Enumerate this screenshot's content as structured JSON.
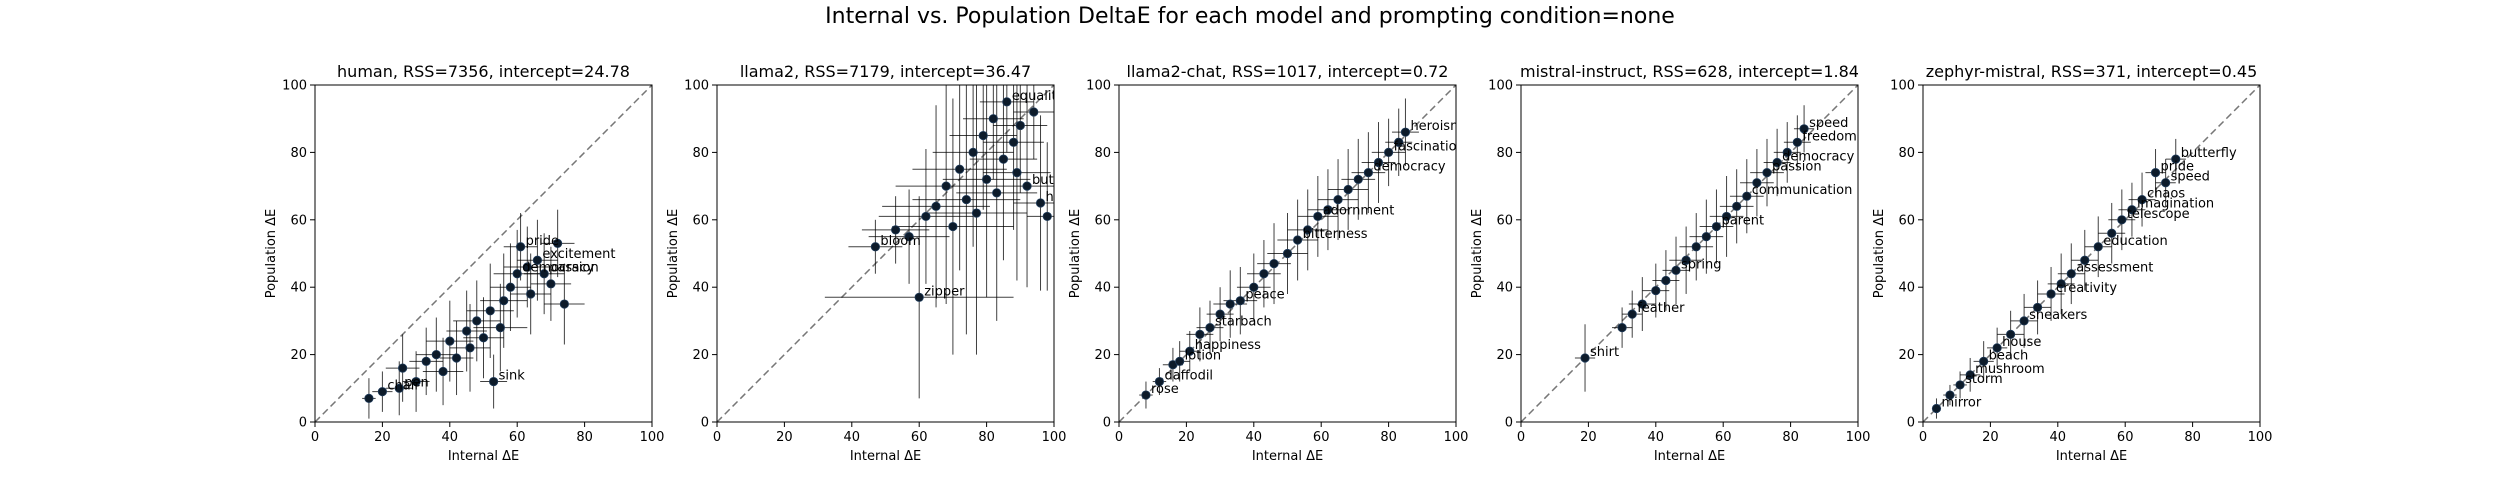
{
  "figure": {
    "title": "Internal vs. Population DeltaE for each model and prompting condition=none"
  },
  "chart_data": [
    {
      "type": "scatter",
      "title": "human, RSS=7356, intercept=24.78",
      "xlabel": "Internal ΔE",
      "ylabel": "Population ΔE",
      "xlim": [
        0,
        100
      ],
      "ylim": [
        0,
        100
      ],
      "xticks": [
        "0",
        "20",
        "40",
        "60",
        "80",
        "100"
      ],
      "yticks": [
        "0",
        "20",
        "40",
        "60",
        "80",
        "100"
      ],
      "diagonal": true,
      "points": [
        {
          "x": 16,
          "y": 7,
          "ex": 2,
          "ey": 6
        },
        {
          "x": 20,
          "y": 9,
          "ex": 3,
          "ey": 6,
          "label": "chair"
        },
        {
          "x": 25,
          "y": 10,
          "ex": 4,
          "ey": 8,
          "label": "pen"
        },
        {
          "x": 26,
          "y": 16,
          "ex": 5,
          "ey": 10
        },
        {
          "x": 30,
          "y": 12,
          "ex": 4,
          "ey": 9
        },
        {
          "x": 33,
          "y": 18,
          "ex": 5,
          "ey": 10
        },
        {
          "x": 36,
          "y": 20,
          "ex": 6,
          "ey": 11
        },
        {
          "x": 38,
          "y": 15,
          "ex": 6,
          "ey": 10
        },
        {
          "x": 40,
          "y": 24,
          "ex": 7,
          "ey": 12
        },
        {
          "x": 42,
          "y": 19,
          "ex": 5,
          "ey": 11
        },
        {
          "x": 45,
          "y": 27,
          "ex": 6,
          "ey": 12
        },
        {
          "x": 46,
          "y": 22,
          "ex": 6,
          "ey": 13
        },
        {
          "x": 48,
          "y": 30,
          "ex": 7,
          "ey": 12
        },
        {
          "x": 50,
          "y": 25,
          "ex": 6,
          "ey": 12
        },
        {
          "x": 52,
          "y": 33,
          "ex": 7,
          "ey": 14
        },
        {
          "x": 53,
          "y": 12,
          "ex": 4,
          "ey": 8,
          "label": "sink"
        },
        {
          "x": 55,
          "y": 28,
          "ex": 8,
          "ey": 13
        },
        {
          "x": 56,
          "y": 36,
          "ex": 7,
          "ey": 14
        },
        {
          "x": 58,
          "y": 40,
          "ex": 6,
          "ey": 13
        },
        {
          "x": 60,
          "y": 44,
          "ex": 7,
          "ey": 13,
          "label": "democracy"
        },
        {
          "x": 61,
          "y": 52,
          "ex": 5,
          "ey": 10,
          "label": "pride"
        },
        {
          "x": 63,
          "y": 46,
          "ex": 7,
          "ey": 12
        },
        {
          "x": 64,
          "y": 38,
          "ex": 6,
          "ey": 12
        },
        {
          "x": 66,
          "y": 48,
          "ex": 6,
          "ey": 12,
          "label": "excitement"
        },
        {
          "x": 68,
          "y": 44,
          "ex": 6,
          "ey": 12,
          "label": "passion"
        },
        {
          "x": 70,
          "y": 41,
          "ex": 6,
          "ey": 11
        },
        {
          "x": 72,
          "y": 53,
          "ex": 5,
          "ey": 10
        },
        {
          "x": 74,
          "y": 35,
          "ex": 6,
          "ey": 12
        }
      ]
    },
    {
      "type": "scatter",
      "title": "llama2, RSS=7179, intercept=36.47",
      "xlabel": "Internal ΔE",
      "ylabel": "Population ΔE",
      "xlim": [
        0,
        100
      ],
      "ylim": [
        0,
        100
      ],
      "xticks": [
        "0",
        "20",
        "40",
        "60",
        "80",
        "100"
      ],
      "yticks": [
        "0",
        "20",
        "40",
        "60",
        "80",
        "100"
      ],
      "diagonal": true,
      "points": [
        {
          "x": 47,
          "y": 52,
          "ex": 8,
          "ey": 8,
          "label": "bloom"
        },
        {
          "x": 53,
          "y": 57,
          "ex": 10,
          "ey": 10
        },
        {
          "x": 57,
          "y": 55,
          "ex": 12,
          "ey": 14
        },
        {
          "x": 60,
          "y": 37,
          "ex": 28,
          "ey": 30,
          "label": "zipper"
        },
        {
          "x": 62,
          "y": 61,
          "ex": 14,
          "ey": 20
        },
        {
          "x": 65,
          "y": 64,
          "ex": 16,
          "ey": 30
        },
        {
          "x": 68,
          "y": 70,
          "ex": 15,
          "ey": 35
        },
        {
          "x": 70,
          "y": 58,
          "ex": 18,
          "ey": 38
        },
        {
          "x": 72,
          "y": 75,
          "ex": 14,
          "ey": 30
        },
        {
          "x": 74,
          "y": 66,
          "ex": 16,
          "ey": 40
        },
        {
          "x": 76,
          "y": 80,
          "ex": 12,
          "ey": 28
        },
        {
          "x": 77,
          "y": 62,
          "ex": 15,
          "ey": 42
        },
        {
          "x": 79,
          "y": 85,
          "ex": 10,
          "ey": 22
        },
        {
          "x": 80,
          "y": 72,
          "ex": 13,
          "ey": 35
        },
        {
          "x": 82,
          "y": 90,
          "ex": 9,
          "ey": 18
        },
        {
          "x": 83,
          "y": 68,
          "ex": 12,
          "ey": 38
        },
        {
          "x": 85,
          "y": 78,
          "ex": 10,
          "ey": 30
        },
        {
          "x": 86,
          "y": 95,
          "ex": 8,
          "ey": 15,
          "label": "equality"
        },
        {
          "x": 88,
          "y": 83,
          "ex": 9,
          "ey": 26
        },
        {
          "x": 89,
          "y": 74,
          "ex": 10,
          "ey": 32
        },
        {
          "x": 90,
          "y": 88,
          "ex": 8,
          "ey": 20
        },
        {
          "x": 92,
          "y": 70,
          "ex": 9,
          "ey": 30,
          "label": "butterfly"
        },
        {
          "x": 94,
          "y": 92,
          "ex": 6,
          "ey": 14
        },
        {
          "x": 96,
          "y": 65,
          "ex": 8,
          "ey": 26,
          "label": "heaven"
        },
        {
          "x": 98,
          "y": 61,
          "ex": 6,
          "ey": 22
        }
      ]
    },
    {
      "type": "scatter",
      "title": "llama2-chat, RSS=1017, intercept=0.72",
      "xlabel": "Internal ΔE",
      "ylabel": "Population ΔE",
      "xlim": [
        0,
        100
      ],
      "ylim": [
        0,
        100
      ],
      "xticks": [
        "0",
        "20",
        "40",
        "60",
        "80",
        "100"
      ],
      "yticks": [
        "0",
        "20",
        "40",
        "60",
        "80",
        "100"
      ],
      "diagonal": true,
      "points": [
        {
          "x": 8,
          "y": 8,
          "ex": 2,
          "ey": 4,
          "label": "rose"
        },
        {
          "x": 12,
          "y": 12,
          "ex": 2,
          "ey": 4,
          "label": "daffodil"
        },
        {
          "x": 16,
          "y": 17,
          "ex": 3,
          "ey": 5
        },
        {
          "x": 18,
          "y": 18,
          "ex": 3,
          "ey": 6,
          "label": "lotion"
        },
        {
          "x": 21,
          "y": 21,
          "ex": 3,
          "ey": 6,
          "label": "happiness"
        },
        {
          "x": 24,
          "y": 26,
          "ex": 4,
          "ey": 8
        },
        {
          "x": 27,
          "y": 28,
          "ex": 4,
          "ey": 8,
          "label": "starbach"
        },
        {
          "x": 30,
          "y": 32,
          "ex": 4,
          "ey": 8
        },
        {
          "x": 33,
          "y": 35,
          "ex": 5,
          "ey": 10
        },
        {
          "x": 36,
          "y": 36,
          "ex": 5,
          "ey": 10,
          "label": "peace"
        },
        {
          "x": 40,
          "y": 40,
          "ex": 5,
          "ey": 10
        },
        {
          "x": 43,
          "y": 44,
          "ex": 5,
          "ey": 10
        },
        {
          "x": 46,
          "y": 47,
          "ex": 5,
          "ey": 12
        },
        {
          "x": 50,
          "y": 50,
          "ex": 6,
          "ey": 12
        },
        {
          "x": 53,
          "y": 54,
          "ex": 6,
          "ey": 12,
          "label": "bitterness"
        },
        {
          "x": 56,
          "y": 57,
          "ex": 6,
          "ey": 12
        },
        {
          "x": 59,
          "y": 61,
          "ex": 6,
          "ey": 12,
          "label": "adornment"
        },
        {
          "x": 62,
          "y": 63,
          "ex": 6,
          "ey": 12
        },
        {
          "x": 65,
          "y": 66,
          "ex": 6,
          "ey": 12
        },
        {
          "x": 68,
          "y": 69,
          "ex": 6,
          "ey": 12
        },
        {
          "x": 71,
          "y": 72,
          "ex": 5,
          "ey": 12
        },
        {
          "x": 74,
          "y": 74,
          "ex": 5,
          "ey": 12,
          "label": "democracy"
        },
        {
          "x": 77,
          "y": 77,
          "ex": 5,
          "ey": 12
        },
        {
          "x": 80,
          "y": 80,
          "ex": 5,
          "ey": 10,
          "label": "fascination"
        },
        {
          "x": 83,
          "y": 83,
          "ex": 4,
          "ey": 10
        },
        {
          "x": 85,
          "y": 86,
          "ex": 4,
          "ey": 10,
          "label": "heroism"
        }
      ]
    },
    {
      "type": "scatter",
      "title": "mistral-instruct, RSS=628, intercept=1.84",
      "xlabel": "Internal ΔE",
      "ylabel": "Population ΔE",
      "xlim": [
        0,
        100
      ],
      "ylim": [
        0,
        100
      ],
      "xticks": [
        "0",
        "20",
        "40",
        "60",
        "80",
        "100"
      ],
      "yticks": [
        "0",
        "20",
        "40",
        "60",
        "80",
        "100"
      ],
      "diagonal": true,
      "points": [
        {
          "x": 19,
          "y": 19,
          "ex": 3,
          "ey": 10,
          "label": "shirt"
        },
        {
          "x": 30,
          "y": 28,
          "ex": 3,
          "ey": 6
        },
        {
          "x": 33,
          "y": 32,
          "ex": 3,
          "ey": 7,
          "label": "feather"
        },
        {
          "x": 36,
          "y": 35,
          "ex": 4,
          "ey": 8
        },
        {
          "x": 40,
          "y": 39,
          "ex": 4,
          "ey": 8
        },
        {
          "x": 43,
          "y": 42,
          "ex": 4,
          "ey": 9
        },
        {
          "x": 46,
          "y": 45,
          "ex": 4,
          "ey": 10,
          "label": "spring"
        },
        {
          "x": 49,
          "y": 48,
          "ex": 5,
          "ey": 10
        },
        {
          "x": 52,
          "y": 52,
          "ex": 5,
          "ey": 10
        },
        {
          "x": 55,
          "y": 55,
          "ex": 5,
          "ey": 11
        },
        {
          "x": 58,
          "y": 58,
          "ex": 5,
          "ey": 11,
          "label": "parent"
        },
        {
          "x": 61,
          "y": 61,
          "ex": 5,
          "ey": 12
        },
        {
          "x": 64,
          "y": 64,
          "ex": 5,
          "ey": 11
        },
        {
          "x": 67,
          "y": 67,
          "ex": 5,
          "ey": 11,
          "label": "communication"
        },
        {
          "x": 70,
          "y": 71,
          "ex": 5,
          "ey": 10
        },
        {
          "x": 73,
          "y": 74,
          "ex": 5,
          "ey": 10,
          "label": "passion"
        },
        {
          "x": 76,
          "y": 77,
          "ex": 4,
          "ey": 10,
          "label": "democracy"
        },
        {
          "x": 79,
          "y": 80,
          "ex": 4,
          "ey": 9
        },
        {
          "x": 82,
          "y": 83,
          "ex": 4,
          "ey": 8,
          "label": "freedom"
        },
        {
          "x": 84,
          "y": 87,
          "ex": 3,
          "ey": 7,
          "label": "speed"
        }
      ]
    },
    {
      "type": "scatter",
      "title": "zephyr-mistral, RSS=371, intercept=0.45",
      "xlabel": "Internal ΔE",
      "ylabel": "Population ΔE",
      "xlim": [
        0,
        100
      ],
      "ylim": [
        0,
        100
      ],
      "xticks": [
        "0",
        "20",
        "40",
        "60",
        "80",
        "100"
      ],
      "yticks": [
        "0",
        "20",
        "40",
        "60",
        "80",
        "100"
      ],
      "diagonal": true,
      "points": [
        {
          "x": 4,
          "y": 4,
          "ex": 1,
          "ey": 3,
          "label": "mirror"
        },
        {
          "x": 8,
          "y": 8,
          "ex": 2,
          "ey": 3
        },
        {
          "x": 11,
          "y": 11,
          "ex": 2,
          "ey": 4,
          "label": "storm"
        },
        {
          "x": 14,
          "y": 14,
          "ex": 3,
          "ey": 5,
          "label": "mushroom"
        },
        {
          "x": 18,
          "y": 18,
          "ex": 3,
          "ey": 6,
          "label": "beach"
        },
        {
          "x": 22,
          "y": 22,
          "ex": 3,
          "ey": 6,
          "label": "house"
        },
        {
          "x": 26,
          "y": 26,
          "ex": 4,
          "ey": 7
        },
        {
          "x": 30,
          "y": 30,
          "ex": 4,
          "ey": 8,
          "label": "sneakers"
        },
        {
          "x": 34,
          "y": 34,
          "ex": 4,
          "ey": 8
        },
        {
          "x": 38,
          "y": 38,
          "ex": 4,
          "ey": 8,
          "label": "creativity"
        },
        {
          "x": 41,
          "y": 41,
          "ex": 4,
          "ey": 9
        },
        {
          "x": 44,
          "y": 44,
          "ex": 4,
          "ey": 9,
          "label": "assessment"
        },
        {
          "x": 48,
          "y": 48,
          "ex": 4,
          "ey": 9
        },
        {
          "x": 52,
          "y": 52,
          "ex": 4,
          "ey": 9,
          "label": "education"
        },
        {
          "x": 56,
          "y": 56,
          "ex": 4,
          "ey": 9
        },
        {
          "x": 59,
          "y": 60,
          "ex": 4,
          "ey": 9,
          "label": "telescope"
        },
        {
          "x": 62,
          "y": 63,
          "ex": 4,
          "ey": 8,
          "label": "imagination"
        },
        {
          "x": 65,
          "y": 66,
          "ex": 4,
          "ey": 8,
          "label": "chaos"
        },
        {
          "x": 69,
          "y": 74,
          "ex": 3,
          "ey": 7,
          "label": "pride"
        },
        {
          "x": 72,
          "y": 71,
          "ex": 3,
          "ey": 7,
          "label": "speed"
        },
        {
          "x": 75,
          "y": 78,
          "ex": 3,
          "ey": 6,
          "label": "butterfly"
        }
      ]
    }
  ]
}
